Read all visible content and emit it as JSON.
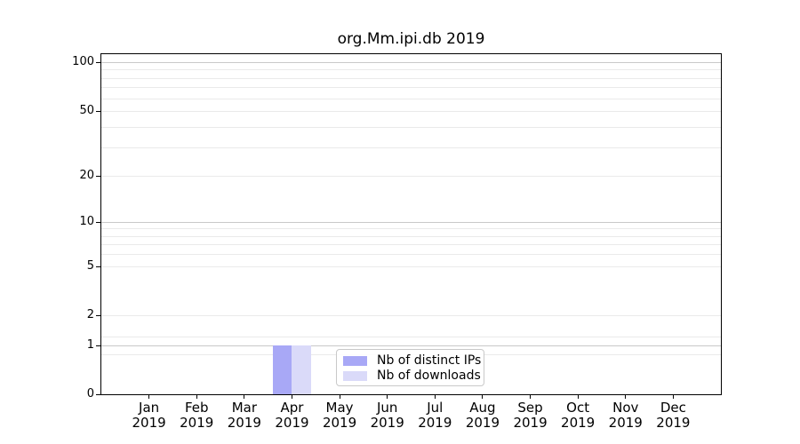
{
  "chart_data": {
    "type": "bar",
    "title": "org.Mm.ipi.db 2019",
    "categories": [
      {
        "month": "Jan",
        "year": "2019"
      },
      {
        "month": "Feb",
        "year": "2019"
      },
      {
        "month": "Mar",
        "year": "2019"
      },
      {
        "month": "Apr",
        "year": "2019"
      },
      {
        "month": "May",
        "year": "2019"
      },
      {
        "month": "Jun",
        "year": "2019"
      },
      {
        "month": "Jul",
        "year": "2019"
      },
      {
        "month": "Aug",
        "year": "2019"
      },
      {
        "month": "Sep",
        "year": "2019"
      },
      {
        "month": "Oct",
        "year": "2019"
      },
      {
        "month": "Nov",
        "year": "2019"
      },
      {
        "month": "Dec",
        "year": "2019"
      }
    ],
    "series": [
      {
        "name": "Nb of distinct IPs",
        "color": "#a8a8f6",
        "values": [
          0,
          0,
          0,
          1,
          0,
          0,
          0,
          0,
          0,
          0,
          0,
          0
        ]
      },
      {
        "name": "Nb of downloads",
        "color": "#dadaf9",
        "values": [
          0,
          0,
          0,
          1,
          0,
          0,
          0,
          0,
          0,
          0,
          0,
          0
        ]
      }
    ],
    "y_ticks": [
      100,
      50,
      20,
      10,
      5,
      2,
      1,
      0
    ],
    "yscale": "log-like (linear below 1)",
    "ylim": [
      0,
      112
    ],
    "grid": "horizontal only; darker lines at 1, 10, 100; faint minor lines between",
    "legend_position": "lower center",
    "xlabel": "",
    "ylabel": ""
  },
  "colors": {
    "axis": "#000000",
    "grid_major": "#c9c9c9",
    "grid_minor": "#eaeaea",
    "background": "#ffffff"
  }
}
